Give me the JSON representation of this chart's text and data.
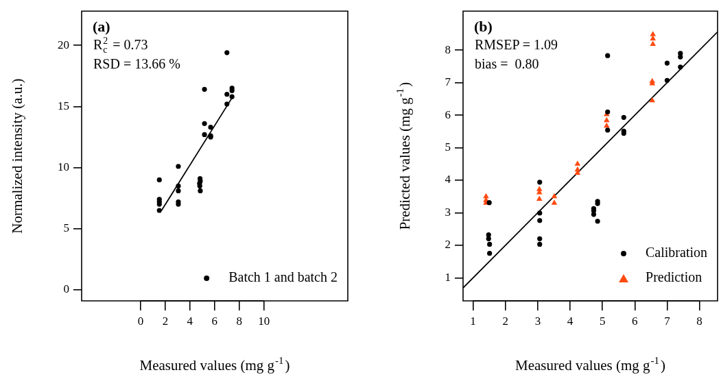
{
  "chart_data": [
    {
      "type": "scatter",
      "title": "(a)",
      "xlabel": "Measured values (mg g$^{-1}$)",
      "ylabel": "Normalized intensity (a.u.)",
      "annotations": [
        "R$_{c}$$^{2}$ = 0.73",
        "RSD = 13.66 %"
      ],
      "xlim": [
        -4.78,
        16.8
      ],
      "xticks": [
        0,
        2,
        4,
        6,
        8,
        10
      ],
      "ylim": [
        -0.9,
        22.8
      ],
      "yticks": [
        0,
        5,
        10,
        15,
        20
      ],
      "grid": false,
      "legend": "bottom right",
      "marker": "circle",
      "series": [
        {
          "name": "Batch 1 and batch 2",
          "color": "#000000",
          "x": [
            1.52,
            1.52,
            1.52,
            1.52,
            1.52,
            3.06,
            3.06,
            3.06,
            3.06,
            3.06,
            4.82,
            4.84,
            4.78,
            4.8,
            4.84,
            5.18,
            5.18,
            5.18,
            5.68,
            5.68,
            5.68,
            7.0,
            7.0,
            7.0,
            7.41,
            7.41,
            7.41
          ],
          "values": [
            9.0,
            7.4,
            7.2,
            7.0,
            6.5,
            10.1,
            8.5,
            8.1,
            7.2,
            7.0,
            9.1,
            8.9,
            8.7,
            8.5,
            8.1,
            16.4,
            13.6,
            12.7,
            13.3,
            12.6,
            12.5,
            19.4,
            16.0,
            15.2,
            16.5,
            16.3,
            15.8
          ]
        },
        {
          "type": "line",
          "color": "#000000",
          "marker": "none",
          "x": [
            1.7,
            7.41
          ],
          "values": [
            6.5,
            15.7
          ]
        }
      ]
    },
    {
      "type": "scatter",
      "title": "(b)",
      "xlabel": "Measured values (mg g$^{-1}$)",
      "ylabel": "Predicted values (mg g$^{-1}$)",
      "annotations": [
        "RMSEP = 1.09",
        "bias =  0.80"
      ],
      "xlim": [
        0.69,
        8.56
      ],
      "xticks": [
        1,
        2,
        3,
        4,
        5,
        6,
        7,
        8
      ],
      "ylim": [
        0.29,
        9.2
      ],
      "yticks": [
        1,
        2,
        3,
        4,
        5,
        6,
        7,
        8
      ],
      "grid": false,
      "legend": "bottom right",
      "series": [
        {
          "name": "Calibration",
          "color": "#000000",
          "marker": "circle",
          "x": [
            1.5,
            1.48,
            1.48,
            1.51,
            1.51,
            3.06,
            3.06,
            3.06,
            3.06,
            3.06,
            4.73,
            4.73,
            4.73,
            4.85,
            4.85,
            4.85,
            5.16,
            5.16,
            5.16,
            5.66,
            5.66,
            5.66,
            7.0,
            7.0,
            7.41,
            7.41,
            7.41
          ],
          "values": [
            3.31,
            2.32,
            2.2,
            2.03,
            1.75,
            3.94,
            2.99,
            2.76,
            2.2,
            2.03,
            3.13,
            3.06,
            2.95,
            3.35,
            3.28,
            2.74,
            7.83,
            6.1,
            5.54,
            5.93,
            5.51,
            5.44,
            7.6,
            7.07,
            7.9,
            7.79,
            7.48
          ]
        },
        {
          "name": "Prediction",
          "color": "#ff4a10",
          "marker": "triangle",
          "x": [
            1.4,
            1.4,
            1.4,
            3.05,
            3.05,
            3.05,
            3.51,
            3.51,
            4.23,
            4.23,
            4.23,
            5.13,
            5.13,
            5.13,
            6.54,
            6.54,
            6.54,
            6.56,
            6.56,
            6.56
          ],
          "values": [
            3.5,
            3.38,
            3.3,
            3.72,
            3.62,
            3.42,
            3.5,
            3.3,
            4.5,
            4.32,
            4.22,
            6.02,
            5.84,
            5.67,
            7.04,
            6.97,
            6.45,
            8.48,
            8.35,
            8.18
          ]
        },
        {
          "type": "line",
          "color": "#000000",
          "marker": "none",
          "x": [
            0.69,
            8.56
          ],
          "values": [
            0.69,
            8.56
          ]
        }
      ]
    }
  ]
}
